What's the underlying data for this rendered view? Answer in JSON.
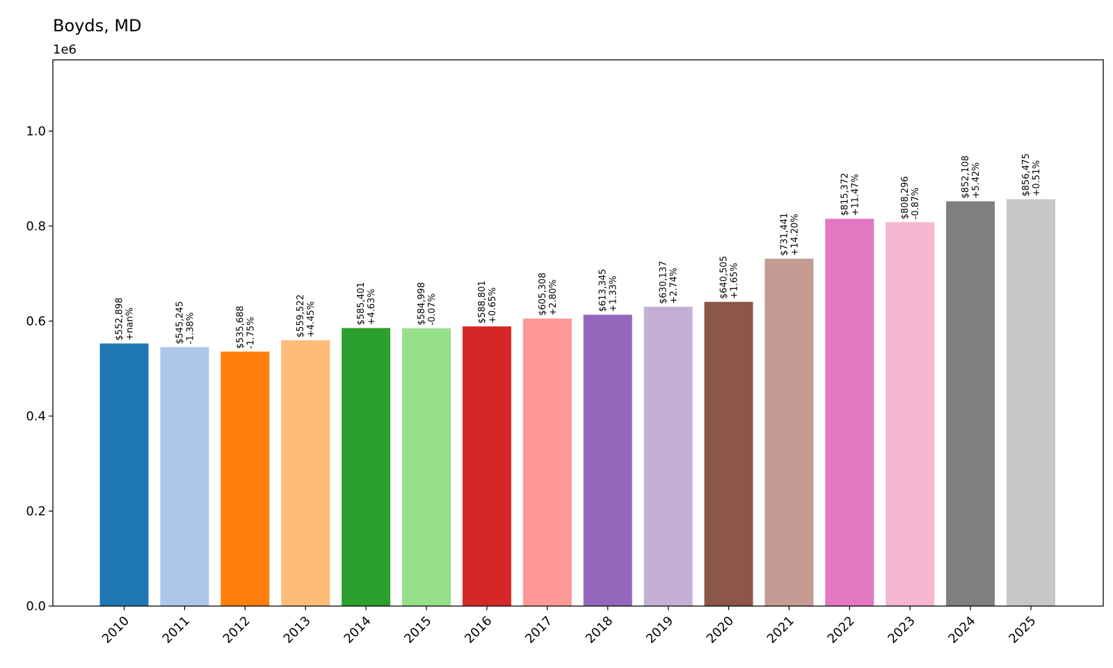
{
  "chart_data": {
    "type": "bar",
    "title": "Boyds, MD",
    "xlabel": "",
    "ylabel": "",
    "y_offset_label": "1e6",
    "ylim": [
      0,
      1150000
    ],
    "yticks": [
      0,
      200000,
      400000,
      600000,
      800000,
      1000000
    ],
    "ytick_labels": [
      "0.0",
      "0.2",
      "0.4",
      "0.6",
      "0.8",
      "1.0"
    ],
    "grid": false,
    "categories": [
      "2010",
      "2011",
      "2012",
      "2013",
      "2014",
      "2015",
      "2016",
      "2017",
      "2018",
      "2019",
      "2020",
      "2021",
      "2022",
      "2023",
      "2024",
      "2025"
    ],
    "values": [
      552898,
      545245,
      535688,
      559522,
      585401,
      584998,
      588801,
      605308,
      613345,
      630137,
      640505,
      731441,
      815372,
      808296,
      852108,
      856475
    ],
    "value_labels": [
      "$552,898",
      "$545,245",
      "$535,688",
      "$559,522",
      "$585,401",
      "$584,998",
      "$588,801",
      "$605,308",
      "$613,345",
      "$630,137",
      "$640,505",
      "$731,441",
      "$815,372",
      "$808,296",
      "$852,108",
      "$856,475"
    ],
    "change_labels": [
      "+nan%",
      "-1.38%",
      "-1.75%",
      "+4.45%",
      "+4.63%",
      "-0.07%",
      "+0.65%",
      "+2.80%",
      "+1.33%",
      "+2.74%",
      "+1.65%",
      "+14.20%",
      "+11.47%",
      "-0.87%",
      "+5.42%",
      "+0.51%"
    ],
    "colors": [
      "#1f77b4",
      "#aec7e8",
      "#ff7f0e",
      "#ffbb78",
      "#2ca02c",
      "#98df8a",
      "#d62728",
      "#ff9896",
      "#9467bd",
      "#c5b0d5",
      "#8c564b",
      "#c49c94",
      "#e377c2",
      "#f7b6d2",
      "#7f7f7f",
      "#c7c7c7"
    ]
  }
}
